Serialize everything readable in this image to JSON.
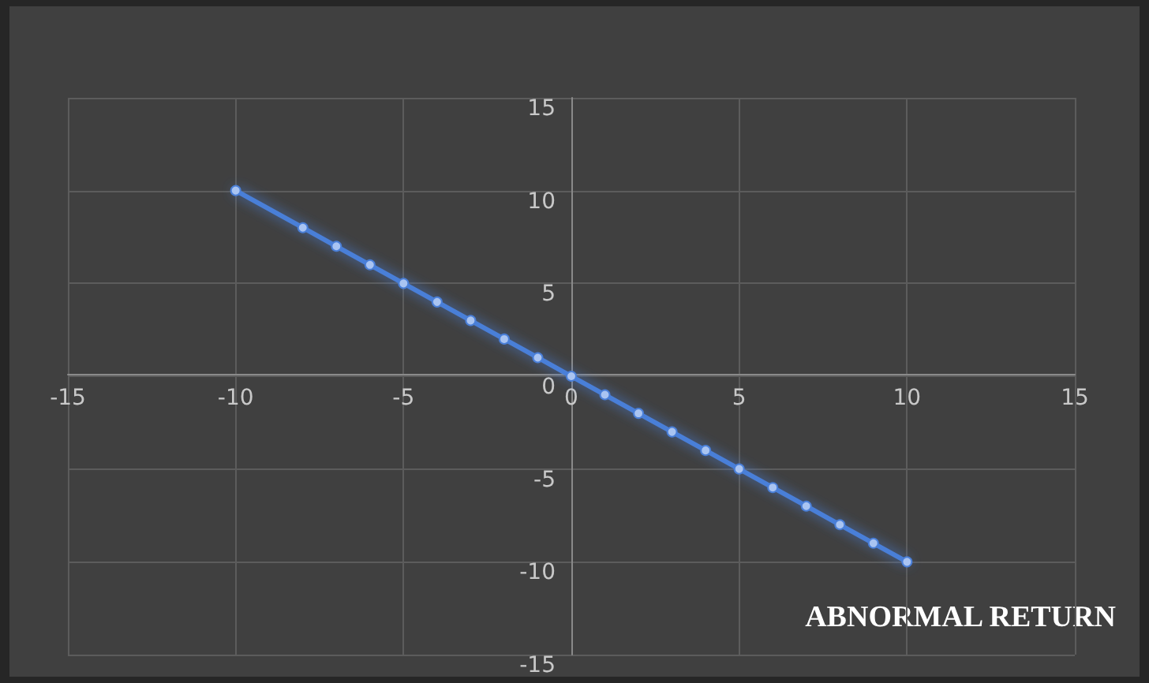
{
  "chart_data": {
    "type": "line",
    "annotations": [
      "ABNORMAL RETURN"
    ],
    "x": [
      -10,
      -8,
      -7,
      -6,
      -5,
      -4,
      -3,
      -2,
      -1,
      0,
      1,
      2,
      3,
      4,
      5,
      6,
      7,
      8,
      9,
      10
    ],
    "series": [
      {
        "color": "#4a7fd8",
        "values": [
          10,
          8,
          7,
          6,
          5,
          4,
          3,
          2,
          1,
          0,
          -1,
          -2,
          -3,
          -4,
          -5,
          -6,
          -7,
          -8,
          -9,
          -10
        ]
      }
    ],
    "xlim": [
      -15,
      15
    ],
    "xticks": [
      -15,
      -10,
      -5,
      0,
      5,
      10,
      15
    ],
    "ylim": [
      -15,
      15
    ],
    "yticks": [
      -15,
      -10,
      -5,
      0,
      5,
      10,
      15
    ],
    "grid": true,
    "marker": "circle",
    "line_style": "solid"
  }
}
